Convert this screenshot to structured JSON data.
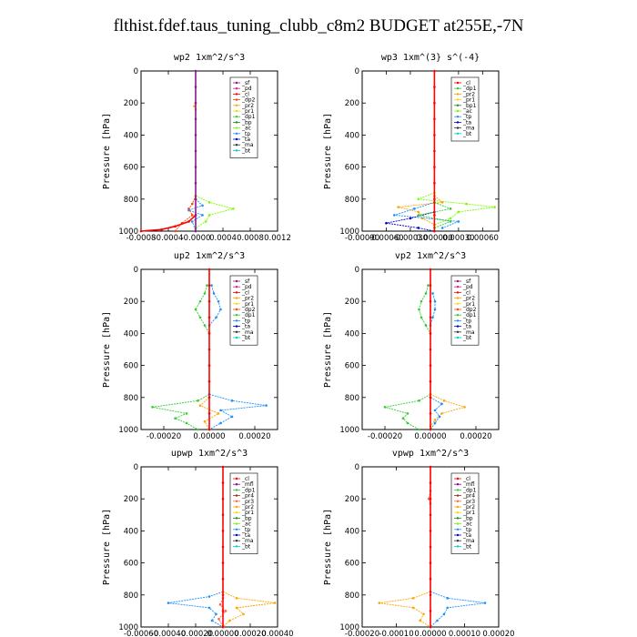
{
  "figure_title": "flthist.fdef.taus_tuning_clubb_c8m2  BUDGET at255E,-7N",
  "colors": {
    "sf": "#8b1a8b",
    "pd": "#d02090",
    "cl": "#ff0000",
    "dp2": "#ff4500",
    "pr2": "#ffa500",
    "pr1": "#ffd700",
    "dp1": "#32cd32",
    "tp": "#1e90ff",
    "ta": "#0000cd",
    "ma": "#333333",
    "bt": "#00ced1",
    "bp": "#228b22",
    "ac": "#7cfc00",
    "mfl": "#8b008b",
    "pr4": "#b22222",
    "pr3": "#ff6347",
    "bp1": "#228b22"
  },
  "chart_data": [
    {
      "type": "line",
      "title": "wp2   1xm^2/s^3",
      "ylabel": "Pressure  [hPa]",
      "ylim": [
        1000,
        0
      ],
      "yticks": [
        "0",
        "200",
        "400",
        "600",
        "800",
        "1000"
      ],
      "xlim": [
        -0.0008,
        0.0012
      ],
      "xticks": [
        -0.0008,
        -0.0004,
        0.0,
        0.0004,
        0.0008,
        0.0012
      ],
      "xticklabels": [
        "-0.0008",
        "-0.0004",
        "-0.0000",
        "0.0004",
        "0.0008",
        "0.0012"
      ],
      "legend": [
        "_sf",
        "_pd",
        "_cl",
        "_dp2",
        "_pr2",
        "_pr1",
        "_dp1",
        "_bp",
        "_ac",
        "_tp",
        "_ta",
        "_ma",
        "_bt"
      ],
      "legend_keys": [
        "sf",
        "pd",
        "cl",
        "dp2",
        "pr2",
        "pr1",
        "dp1",
        "bp",
        "ac",
        "tp",
        "ta",
        "ma",
        "bt"
      ],
      "legend_position": "top-right",
      "series": [
        {
          "key": "ac",
          "p": [
            780,
            820,
            860,
            900,
            940,
            980
          ],
          "x": [
            0,
            0.0002,
            0.00055,
            0.0002,
            0.00015,
            0
          ]
        },
        {
          "key": "tp",
          "p": [
            800,
            840,
            870,
            900,
            940,
            1000
          ],
          "x": [
            0,
            0.0001,
            -0.0001,
            0.0001,
            -5e-05,
            0
          ]
        },
        {
          "key": "dp2",
          "p": [
            780,
            830,
            860,
            900,
            950,
            1000
          ],
          "x": [
            0,
            -5e-05,
            -0.0001,
            -5e-05,
            -0.0002,
            -0.0003
          ]
        },
        {
          "key": "cl",
          "p": [
            900,
            940,
            970,
            990,
            1000
          ],
          "x": [
            0,
            -0.0001,
            -0.0003,
            -0.0005,
            -0.0008
          ]
        },
        {
          "key": "pr2",
          "p": [
            200,
            220,
            240
          ],
          "x": [
            0,
            -2e-05,
            0
          ]
        },
        {
          "key": "sf",
          "p": [
            0,
            100,
            200,
            300,
            400,
            500,
            600,
            700,
            800,
            900,
            1000
          ],
          "x": [
            0,
            0,
            0,
            0,
            0,
            0,
            0,
            0,
            0,
            0,
            0
          ]
        }
      ]
    },
    {
      "type": "line",
      "title": "wp3   1xm^(3} s^(-4}",
      "ylabel": "Pressure  [hPa]",
      "ylim": [
        1000,
        0
      ],
      "yticks": [
        "0",
        "200",
        "400",
        "600",
        "800",
        "1000"
      ],
      "xlim": [
        -0.0009,
        0.0008
      ],
      "xticks": [
        -0.0009,
        -0.0006,
        -0.0003,
        0.0,
        0.0003,
        0.0006
      ],
      "xticklabels": [
        "-0.00090",
        "-0.00060",
        "-0.00030",
        "0.000000",
        "0.00030",
        "0.00060"
      ],
      "legend": [
        "_cl",
        "_dp1",
        "_pr2",
        "_pr1",
        "_bp1",
        "_ac",
        "_tp",
        "_ta",
        "_ma",
        "_bt"
      ],
      "legend_keys": [
        "cl",
        "dp1",
        "pr2",
        "pr1",
        "bp1",
        "ac",
        "tp",
        "ta",
        "ma",
        "bt"
      ],
      "legend_position": "top-right",
      "series": [
        {
          "key": "ac",
          "p": [
            760,
            800,
            830,
            850,
            880,
            920,
            960
          ],
          "x": [
            0,
            -0.0002,
            0.0004,
            0.00075,
            0.0003,
            0.0002,
            0
          ],
          "note": ""
        },
        {
          "key": "pr2",
          "p": [
            780,
            820,
            850,
            880,
            920,
            960
          ],
          "x": [
            0,
            0.0001,
            -0.00045,
            -0.0002,
            -0.00015,
            0
          ]
        },
        {
          "key": "tp",
          "p": [
            820,
            860,
            900,
            940,
            980
          ],
          "x": [
            0,
            -0.00025,
            -0.0005,
            0.0003,
            0.0001
          ]
        },
        {
          "key": "ta",
          "p": [
            880,
            920,
            950,
            980,
            1000
          ],
          "x": [
            0,
            -0.0003,
            -0.0006,
            -0.0002,
            0
          ]
        },
        {
          "key": "dp1",
          "p": [
            820,
            860,
            900,
            940,
            980
          ],
          "x": [
            0,
            0.0002,
            -0.0002,
            0.0002,
            0
          ]
        },
        {
          "key": "cl",
          "p": [
            0,
            100,
            200,
            300,
            400,
            500,
            600,
            700,
            800,
            900,
            1000
          ],
          "x": [
            0,
            0,
            0,
            0,
            0,
            0,
            0,
            0,
            0,
            0,
            0
          ]
        }
      ]
    },
    {
      "type": "line",
      "title": "up2   1xm^2/s^3",
      "ylabel": "Pressure  [hPa]",
      "ylim": [
        1000,
        0
      ],
      "yticks": [
        "0",
        "200",
        "400",
        "600",
        "800",
        "1000"
      ],
      "xlim": [
        -0.0003,
        0.0003
      ],
      "xticks": [
        -0.0002,
        0.0,
        0.0002
      ],
      "xticklabels": [
        "-0.00020",
        "0.00000",
        "0.00020"
      ],
      "legend": [
        "_sf",
        "_pd",
        "_cl",
        "_pr2",
        "_pr1",
        "_dp2",
        "_dp1",
        "_tp",
        "_ta",
        "_ma",
        "_bt"
      ],
      "legend_keys": [
        "sf",
        "pd",
        "cl",
        "pr2",
        "pr1",
        "dp2",
        "dp1",
        "tp",
        "ta",
        "ma",
        "bt"
      ],
      "legend_position": "top-right",
      "series": [
        {
          "key": "dp1",
          "p": [
            100,
            150,
            200,
            250,
            300,
            350,
            400
          ],
          "x": [
            -1e-05,
            -2e-05,
            -4e-05,
            -6e-05,
            -4e-05,
            -2e-05,
            0
          ]
        },
        {
          "key": "tp",
          "p": [
            100,
            150,
            200,
            250,
            300,
            350
          ],
          "x": [
            1e-05,
            2e-05,
            4e-05,
            5e-05,
            3e-05,
            0
          ]
        },
        {
          "key": "dp1",
          "p": [
            780,
            820,
            860,
            900,
            930,
            960,
            1000
          ],
          "x": [
            0,
            -5e-05,
            -0.00025,
            -0.0001,
            -0.00015,
            -0.0001,
            -5e-05
          ]
        },
        {
          "key": "tp",
          "p": [
            780,
            820,
            850,
            880,
            920,
            960,
            1000
          ],
          "x": [
            0,
            0.0001,
            0.00025,
            5e-05,
            0.0001,
            5e-05,
            0
          ]
        },
        {
          "key": "pr2",
          "p": [
            800,
            850,
            900,
            950,
            1000
          ],
          "x": [
            0,
            -4e-05,
            4e-05,
            -2e-05,
            0
          ]
        },
        {
          "key": "cl",
          "p": [
            0,
            100,
            200,
            300,
            400,
            500,
            600,
            700,
            800,
            900,
            1000
          ],
          "x": [
            0,
            0,
            0,
            0,
            0,
            0,
            0,
            0,
            0,
            0,
            0
          ]
        }
      ]
    },
    {
      "type": "line",
      "title": "vp2   1xm^2/s^3",
      "ylabel": "Pressure  [hPa]",
      "ylim": [
        1000,
        0
      ],
      "yticks": [
        "0",
        "200",
        "400",
        "600",
        "800",
        "1000"
      ],
      "xlim": [
        -0.0003,
        0.0003
      ],
      "xticks": [
        -0.0002,
        0.0,
        0.0002
      ],
      "xticklabels": [
        "-0.00020",
        "0.00000",
        "0.00020"
      ],
      "legend": [
        "_sf",
        "_pd",
        "_cl",
        "_pr2",
        "_pr1",
        "_dp2",
        "_dp1",
        "_tp",
        "_ta",
        "_ma",
        "_bt"
      ],
      "legend_keys": [
        "sf",
        "pd",
        "cl",
        "pr2",
        "pr1",
        "dp2",
        "dp1",
        "tp",
        "ta",
        "ma",
        "bt"
      ],
      "legend_position": "top-right",
      "series": [
        {
          "key": "dp1",
          "p": [
            100,
            150,
            200,
            250,
            300,
            350,
            400
          ],
          "x": [
            -1e-05,
            -2e-05,
            -4e-05,
            -5e-05,
            -4e-05,
            -2e-05,
            0
          ]
        },
        {
          "key": "tp",
          "p": [
            150,
            200,
            250,
            300,
            350
          ],
          "x": [
            1e-05,
            2e-05,
            2e-05,
            1e-05,
            0
          ]
        },
        {
          "key": "dp1",
          "p": [
            780,
            820,
            860,
            900,
            930,
            960,
            1000
          ],
          "x": [
            0,
            -5e-05,
            -0.0002,
            -0.0001,
            -0.00012,
            -0.0001,
            -5e-05
          ]
        },
        {
          "key": "pr2",
          "p": [
            780,
            820,
            860,
            900,
            940,
            980
          ],
          "x": [
            0,
            6e-05,
            0.00015,
            5e-05,
            2e-05,
            0
          ]
        },
        {
          "key": "tp",
          "p": [
            800,
            840,
            880,
            920,
            960,
            1000
          ],
          "x": [
            0,
            5e-05,
            2e-05,
            4e-05,
            2e-05,
            0
          ]
        },
        {
          "key": "cl",
          "p": [
            0,
            100,
            200,
            300,
            400,
            500,
            600,
            700,
            800,
            900,
            1000
          ],
          "x": [
            0,
            0,
            0,
            0,
            0,
            0,
            0,
            0,
            0,
            0,
            0
          ]
        }
      ]
    },
    {
      "type": "line",
      "title": "upwp   1xm^2/s^3",
      "ylabel": "Pressure  [hPa]",
      "ylim": [
        1000,
        0
      ],
      "yticks": [
        "0",
        "200",
        "400",
        "600",
        "800",
        "1000"
      ],
      "xlim": [
        -0.0006,
        0.0004
      ],
      "xticks": [
        -0.0006,
        -0.0004,
        -0.0002,
        0.0,
        0.0002,
        0.0004
      ],
      "xticklabels": [
        "-0.00060",
        "-0.00040",
        "-0.00020",
        "0.00000",
        "0.00020",
        "0.00040"
      ],
      "legend": [
        "_cl",
        "_mfl",
        "_dp1",
        "_pr4",
        "_pr3",
        "_pr2",
        "_pr1",
        "_bp",
        "_ac",
        "_tp",
        "_ta",
        "_ma",
        "_bt"
      ],
      "legend_keys": [
        "cl",
        "mfl",
        "dp1",
        "pr4",
        "pr3",
        "pr2",
        "pr1",
        "bp",
        "ac",
        "tp",
        "ta",
        "ma",
        "bt"
      ],
      "legend_position": "top-right",
      "series": [
        {
          "key": "tp",
          "p": [
            780,
            810,
            850,
            880,
            920,
            960,
            1000
          ],
          "x": [
            0,
            -0.0001,
            -0.0004,
            -0.0001,
            -5e-05,
            -8e-05,
            0
          ]
        },
        {
          "key": "pr2",
          "p": [
            780,
            820,
            850,
            880,
            920,
            960,
            1000
          ],
          "x": [
            0,
            0.0001,
            0.00038,
            0.0001,
            0.00015,
            5e-05,
            0
          ]
        },
        {
          "key": "pr3",
          "p": [
            820,
            860,
            900,
            950,
            1000
          ],
          "x": [
            0,
            -2e-05,
            2e-05,
            -3e-05,
            0
          ]
        },
        {
          "key": "cl",
          "p": [
            0,
            100,
            200,
            300,
            400,
            500,
            600,
            700,
            800,
            900,
            1000
          ],
          "x": [
            0,
            0,
            0,
            0,
            0,
            0,
            0,
            0,
            0,
            0,
            0
          ]
        }
      ]
    },
    {
      "type": "line",
      "title": "vpwp   1xm^2/s^3",
      "ylabel": "Pressure  [hPa]",
      "ylim": [
        1000,
        0
      ],
      "yticks": [
        "0",
        "200",
        "400",
        "600",
        "800",
        "1000"
      ],
      "xlim": [
        -0.0002,
        0.0002
      ],
      "xticks": [
        -0.0002,
        -0.0001,
        0.0,
        0.0001,
        0.0002
      ],
      "xticklabels": [
        "-0.00020",
        "-0.00010",
        "0.00000",
        "0.00010",
        "0.00020"
      ],
      "legend": [
        "_cl",
        "_mfl",
        "_dp1",
        "_pr4",
        "_pr3",
        "_pr2",
        "_pr1",
        "_bp",
        "_ac",
        "_tp",
        "_ta",
        "_ma",
        "_bt"
      ],
      "legend_keys": [
        "cl",
        "mfl",
        "dp1",
        "pr4",
        "pr3",
        "pr2",
        "pr1",
        "bp",
        "ac",
        "tp",
        "ta",
        "ma",
        "bt"
      ],
      "legend_position": "top-right",
      "series": [
        {
          "key": "pr2",
          "p": [
            780,
            820,
            850,
            880,
            920,
            960,
            1000
          ],
          "x": [
            0,
            -5e-05,
            -0.00015,
            -5e-05,
            -2e-05,
            -3e-05,
            0
          ]
        },
        {
          "key": "tp",
          "p": [
            780,
            820,
            850,
            880,
            920,
            960,
            1000
          ],
          "x": [
            0,
            5e-05,
            0.00016,
            5e-05,
            4e-05,
            2e-05,
            0
          ]
        },
        {
          "key": "pr3",
          "p": [
            150,
            200,
            230
          ],
          "x": [
            0,
            -5e-06,
            0
          ]
        },
        {
          "key": "cl",
          "p": [
            0,
            100,
            200,
            300,
            400,
            500,
            600,
            700,
            800,
            900,
            1000
          ],
          "x": [
            0,
            0,
            0,
            0,
            0,
            0,
            0,
            0,
            0,
            0,
            0
          ]
        }
      ]
    }
  ]
}
